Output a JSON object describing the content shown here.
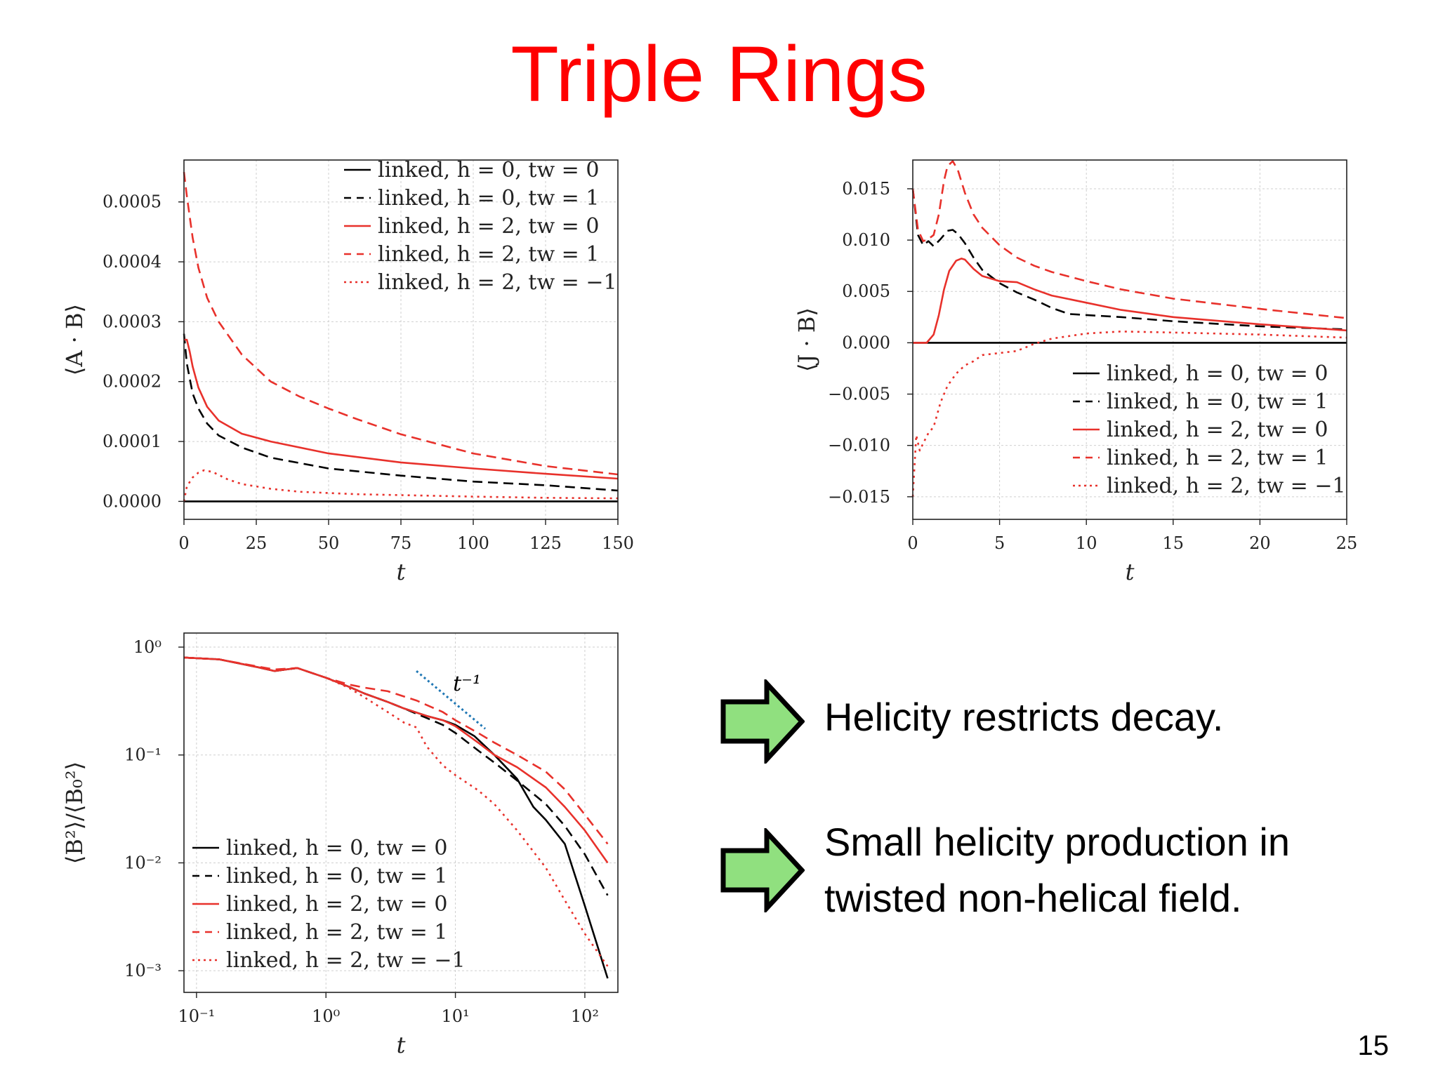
{
  "slide": {
    "title": "Triple Rings",
    "page_number": "15"
  },
  "bullets": [
    {
      "text": "Helicity restricts decay."
    },
    {
      "text": "Small helicity production in twisted non-helical field."
    }
  ],
  "series_styles": [
    {
      "name": "linked, h = 0, tw = 0",
      "color": "#000000",
      "dash": "solid"
    },
    {
      "name": "linked, h = 0, tw = 1",
      "color": "#000000",
      "dash": "dashed"
    },
    {
      "name": "linked, h = 2, tw = 0",
      "color": "#e8312b",
      "dash": "solid"
    },
    {
      "name": "linked, h = 2, tw = 1",
      "color": "#e8312b",
      "dash": "dashed"
    },
    {
      "name": "linked, h = 2, tw = −1",
      "color": "#e8312b",
      "dash": "dotted"
    }
  ],
  "chart_data": [
    {
      "id": "ab",
      "type": "line",
      "xlabel": "t",
      "ylabel": "⟨A · B⟩",
      "xlim": [
        0,
        150
      ],
      "ylim": [
        -3e-05,
        0.00057
      ],
      "xticks": [
        0,
        25,
        50,
        75,
        100,
        125,
        150
      ],
      "xtick_labels": [
        "0",
        "25",
        "50",
        "75",
        "100",
        "125",
        "150"
      ],
      "yticks": [
        0,
        0.0001,
        0.0002,
        0.0003,
        0.0004,
        0.0005
      ],
      "ytick_labels": [
        "0.0000",
        "0.0001",
        "0.0002",
        "0.0003",
        "0.0004",
        "0.0005"
      ],
      "grid": true,
      "legend": "top-right",
      "series": [
        {
          "name": "linked, h = 0, tw = 0",
          "x": [
            0,
            150
          ],
          "y": [
            0,
            0
          ]
        },
        {
          "name": "linked, h = 0, tw = 1",
          "x": [
            0,
            1,
            3,
            5,
            8,
            12,
            20,
            30,
            50,
            75,
            100,
            125,
            150
          ],
          "y": [
            0.00028,
            0.00023,
            0.00018,
            0.000155,
            0.00013,
            0.00011,
            9e-05,
            7.3e-05,
            5.5e-05,
            4.3e-05,
            3.3e-05,
            2.7e-05,
            1.8e-05
          ]
        },
        {
          "name": "linked, h = 2, tw = 0",
          "x": [
            0,
            1,
            2,
            3,
            5,
            8,
            12,
            20,
            30,
            50,
            75,
            100,
            125,
            150
          ],
          "y": [
            0.00027,
            0.00027,
            0.00025,
            0.000225,
            0.00019,
            0.000158,
            0.000135,
            0.000113,
            0.0001,
            8e-05,
            6.5e-05,
            5.5e-05,
            4.6e-05,
            3.8e-05
          ]
        },
        {
          "name": "linked, h = 2, tw = 1",
          "x": [
            0,
            1,
            3,
            5,
            8,
            12,
            20,
            30,
            40,
            50,
            60,
            75,
            100,
            125,
            150
          ],
          "y": [
            0.00055,
            0.00051,
            0.00044,
            0.00039,
            0.00034,
            0.0003,
            0.000245,
            0.0002,
            0.000175,
            0.000155,
            0.000137,
            0.000112,
            8e-05,
            5.9e-05,
            4.5e-05
          ]
        },
        {
          "name": "linked, h = 2, tw = −1",
          "x": [
            0,
            1,
            3,
            5,
            7,
            10,
            15,
            20,
            30,
            40,
            60,
            80,
            100,
            125,
            150
          ],
          "y": [
            0,
            2.5e-05,
            4e-05,
            4.8e-05,
            5.2e-05,
            4.9e-05,
            3.7e-05,
            2.9e-05,
            2.1e-05,
            1.6e-05,
            1.2e-05,
            1e-05,
            8e-06,
            6e-06,
            5e-06
          ]
        }
      ]
    },
    {
      "id": "jb",
      "type": "line",
      "xlabel": "t",
      "ylabel": "⟨J · B⟩",
      "xlim": [
        0,
        25
      ],
      "ylim": [
        -0.0172,
        0.0178
      ],
      "xticks": [
        0,
        5,
        10,
        15,
        20,
        25
      ],
      "xtick_labels": [
        "0",
        "5",
        "10",
        "15",
        "20",
        "25"
      ],
      "yticks": [
        -0.015,
        -0.01,
        -0.005,
        0,
        0.005,
        0.01,
        0.015
      ],
      "ytick_labels": [
        "−0.015",
        "−0.010",
        "−0.005",
        "0.000",
        "0.005",
        "0.010",
        "0.015"
      ],
      "grid": true,
      "legend": "bottom-right",
      "series": [
        {
          "name": "linked, h = 0, tw = 0",
          "x": [
            0,
            25
          ],
          "y": [
            0,
            0
          ]
        },
        {
          "name": "linked, h = 0, tw = 1",
          "x": [
            0,
            0.3,
            0.6,
            0.9,
            1.2,
            1.6,
            2.0,
            2.3,
            2.6,
            3.0,
            3.5,
            4,
            5,
            6,
            7,
            8,
            9,
            10,
            12,
            15,
            20,
            25
          ],
          "y": [
            0.015,
            0.0105,
            0.0095,
            0.0099,
            0.0094,
            0.0101,
            0.0109,
            0.011,
            0.0106,
            0.0097,
            0.0083,
            0.0071,
            0.0058,
            0.0049,
            0.0042,
            0.0034,
            0.0028,
            0.0027,
            0.0025,
            0.0021,
            0.0016,
            0.0013
          ]
        },
        {
          "name": "linked, h = 2, tw = 0",
          "x": [
            0,
            0.8,
            1.2,
            1.5,
            1.8,
            2.1,
            2.5,
            2.8,
            3.0,
            3.5,
            4,
            5,
            6,
            7,
            8,
            10,
            12,
            15,
            20,
            25
          ],
          "y": [
            0,
            0,
            0.0008,
            0.0027,
            0.0052,
            0.007,
            0.008,
            0.0082,
            0.0081,
            0.0072,
            0.0065,
            0.006,
            0.0059,
            0.0052,
            0.0046,
            0.0039,
            0.0032,
            0.0025,
            0.0018,
            0.0012
          ]
        },
        {
          "name": "linked, h = 2, tw = 1",
          "x": [
            0,
            0.3,
            0.6,
            0.9,
            1.2,
            1.5,
            1.8,
            2.0,
            2.3,
            2.6,
            3.0,
            3.5,
            4,
            5,
            6,
            7,
            8,
            10,
            12,
            15,
            20,
            25
          ],
          "y": [
            0.015,
            0.011,
            0.0099,
            0.0101,
            0.0105,
            0.0125,
            0.0158,
            0.0172,
            0.0177,
            0.0168,
            0.0146,
            0.0125,
            0.0112,
            0.0095,
            0.0083,
            0.0075,
            0.0069,
            0.006,
            0.0052,
            0.0043,
            0.0033,
            0.0024
          ]
        },
        {
          "name": "linked, h = 2, tw = −1",
          "x": [
            0,
            0.2,
            0.4,
            0.6,
            0.9,
            1.2,
            1.6,
            2.0,
            2.5,
            3.0,
            3.5,
            4,
            5,
            6,
            7,
            8,
            10,
            12,
            15,
            20,
            25
          ],
          "y": [
            -0.015,
            -0.009,
            -0.0105,
            -0.0098,
            -0.0088,
            -0.0082,
            -0.0058,
            -0.0042,
            -0.003,
            -0.0022,
            -0.0018,
            -0.0012,
            -0.001,
            -0.0008,
            -0.0001,
            0.0004,
            0.0009,
            0.0011,
            0.001,
            0.0008,
            0.0005
          ]
        }
      ]
    },
    {
      "id": "b2",
      "type": "line",
      "xlabel": "t",
      "ylabel": "⟨B²⟩/⟨B₀²⟩",
      "xscale": "log",
      "yscale": "log",
      "xlim": [
        0.08,
        180
      ],
      "ylim": [
        0.00063,
        1.35
      ],
      "xticks": [
        0.1,
        1,
        10,
        100
      ],
      "xtick_labels": [
        "10⁻¹",
        "10⁰",
        "10¹",
        "10²"
      ],
      "yticks": [
        0.001,
        0.01,
        0.1,
        1
      ],
      "ytick_labels": [
        "10⁻³",
        "10⁻²",
        "10⁻¹",
        "10⁰"
      ],
      "grid": true,
      "legend": "bottom-left",
      "annotation": {
        "text": "t⁻¹",
        "x": [
          5,
          17
        ],
        "y": [
          0.6,
          0.175
        ],
        "color": "#1f77b4"
      },
      "series": [
        {
          "name": "linked, h = 0, tw = 0",
          "x": [
            0.08,
            0.15,
            0.3,
            0.4,
            0.6,
            1,
            1.5,
            2,
            3,
            4,
            6,
            8,
            10,
            14,
            20,
            30,
            40,
            50,
            70,
            100,
            150
          ],
          "y": [
            0.8,
            0.77,
            0.65,
            0.6,
            0.64,
            0.52,
            0.43,
            0.37,
            0.31,
            0.27,
            0.23,
            0.21,
            0.19,
            0.15,
            0.1,
            0.06,
            0.033,
            0.025,
            0.015,
            0.004,
            0.00085
          ]
        },
        {
          "name": "linked, h = 0, tw = 1",
          "x": [
            0.08,
            0.15,
            0.3,
            0.4,
            0.6,
            1,
            1.5,
            2,
            3,
            4,
            6,
            8,
            10,
            15,
            20,
            30,
            50,
            70,
            100,
            150
          ],
          "y": [
            0.8,
            0.77,
            0.65,
            0.6,
            0.64,
            0.52,
            0.43,
            0.37,
            0.31,
            0.27,
            0.22,
            0.19,
            0.16,
            0.11,
            0.085,
            0.058,
            0.035,
            0.022,
            0.012,
            0.005
          ]
        },
        {
          "name": "linked, h = 2, tw = 0",
          "x": [
            0.08,
            0.15,
            0.3,
            0.4,
            0.6,
            1,
            1.5,
            2,
            3,
            4,
            6,
            8,
            10,
            15,
            20,
            30,
            50,
            70,
            100,
            150
          ],
          "y": [
            0.8,
            0.77,
            0.65,
            0.6,
            0.64,
            0.52,
            0.43,
            0.37,
            0.31,
            0.27,
            0.23,
            0.21,
            0.185,
            0.13,
            0.1,
            0.077,
            0.05,
            0.033,
            0.02,
            0.01
          ]
        },
        {
          "name": "linked, h = 2, tw = 1",
          "x": [
            0.08,
            0.15,
            0.3,
            0.4,
            0.6,
            1,
            1.5,
            2,
            3,
            5,
            8,
            10,
            15,
            20,
            30,
            50,
            70,
            100,
            150
          ],
          "y": [
            0.8,
            0.77,
            0.66,
            0.62,
            0.64,
            0.52,
            0.45,
            0.42,
            0.39,
            0.32,
            0.25,
            0.21,
            0.16,
            0.13,
            0.1,
            0.07,
            0.048,
            0.028,
            0.015
          ]
        },
        {
          "name": "linked, h = 2, tw = −1",
          "x": [
            0.08,
            0.15,
            0.3,
            0.4,
            0.6,
            1,
            1.5,
            2,
            3,
            4,
            5,
            6,
            8,
            10,
            15,
            20,
            30,
            50,
            70,
            100,
            150
          ],
          "y": [
            0.8,
            0.77,
            0.65,
            0.6,
            0.64,
            0.52,
            0.42,
            0.34,
            0.25,
            0.2,
            0.18,
            0.12,
            0.08,
            0.065,
            0.047,
            0.035,
            0.02,
            0.009,
            0.0045,
            0.0022,
            0.0011
          ]
        }
      ]
    }
  ]
}
